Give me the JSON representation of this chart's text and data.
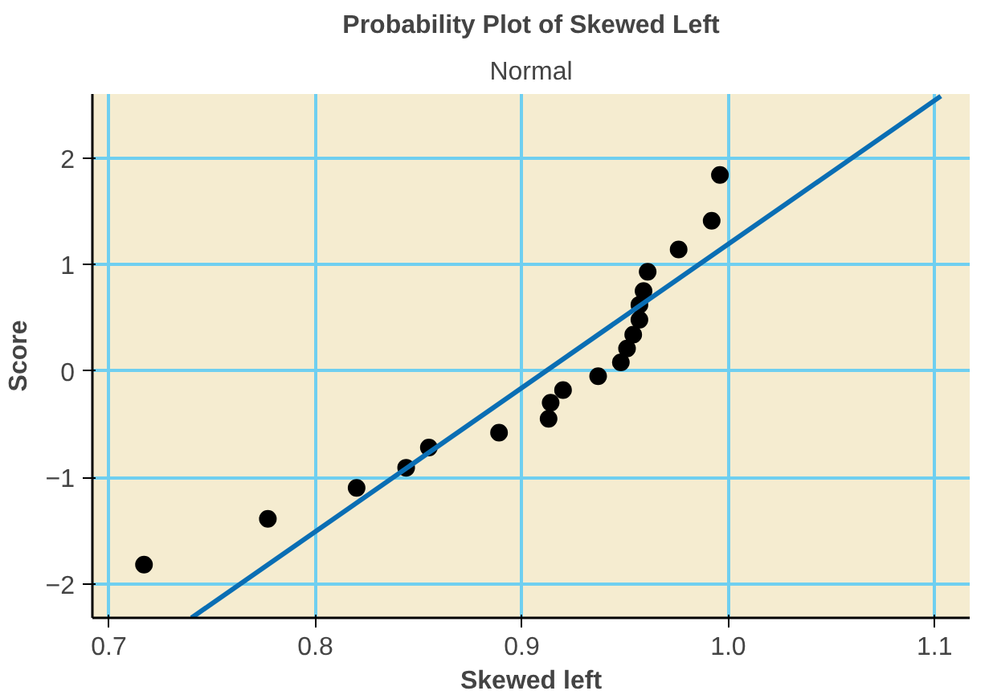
{
  "chart_data": {
    "type": "scatter",
    "title": "Probability Plot of Skewed Left",
    "subtitle": "Normal",
    "xlabel": "Skewed left",
    "ylabel": "Score",
    "xlim": [
      0.692,
      1.117
    ],
    "ylim": [
      -2.32,
      2.6
    ],
    "xticks": [
      {
        "value": 0.7,
        "label": "0.7"
      },
      {
        "value": 0.8,
        "label": "0.8"
      },
      {
        "value": 0.9,
        "label": "0.9"
      },
      {
        "value": 1.0,
        "label": "1.0"
      },
      {
        "value": 1.1,
        "label": "1.1"
      }
    ],
    "yticks": [
      {
        "value": -2,
        "label": "−2"
      },
      {
        "value": -1,
        "label": "−1"
      },
      0,
      1,
      2
    ],
    "grid": true,
    "series": [
      {
        "marker": "circle",
        "color": "#000000",
        "x": [
          0.717,
          0.777,
          0.82,
          0.844,
          0.855,
          0.889,
          0.913,
          0.914,
          0.92,
          0.937,
          0.948,
          0.951,
          0.954,
          0.957,
          0.957,
          0.959,
          0.961,
          0.976,
          0.992,
          0.996
        ],
        "values": [
          -1.82,
          -1.39,
          -1.1,
          -0.91,
          -0.72,
          -0.58,
          -0.45,
          -0.3,
          -0.18,
          -0.05,
          0.08,
          0.21,
          0.34,
          0.48,
          0.62,
          0.75,
          0.93,
          1.14,
          1.41,
          1.84
        ]
      },
      {
        "type": "line",
        "marker": "none",
        "color": "#0a6eb4",
        "x": [
          0.74,
          1.103
        ],
        "values": [
          -2.32,
          2.58
        ]
      }
    ]
  }
}
